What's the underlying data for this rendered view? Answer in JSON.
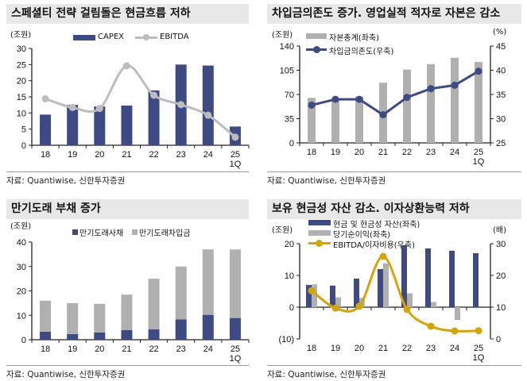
{
  "source_label": "자료: Quantiwise, 신한투자증권",
  "chart_data": [
    {
      "type": "bar+line",
      "title": "스페셜티 전략 걸림돌은 현금흐름 저하",
      "unit_left": "(조원)",
      "categories": [
        "18",
        "19",
        "20",
        "21",
        "22",
        "23",
        "24",
        "25 1Q"
      ],
      "ylim": [
        0,
        30
      ],
      "yticks": [
        "0",
        "5",
        "10",
        "15",
        "20",
        "25",
        "30"
      ],
      "series": [
        {
          "name": "CAPEX",
          "kind": "bar",
          "axis": "left",
          "color": "#3d4a84",
          "values": [
            9.5,
            12.5,
            12.0,
            12.3,
            17.0,
            25.0,
            24.7,
            5.8
          ]
        },
        {
          "name": "EBITDA",
          "kind": "line",
          "axis": "left",
          "smooth": true,
          "color": "#bdbdbd",
          "values": [
            14.4,
            11.7,
            11.4,
            24.6,
            15.5,
            12.6,
            9.3,
            2.5
          ]
        }
      ]
    },
    {
      "type": "bar+line",
      "title": "차입금의존도 증가. 영업실적 적자로 자본은 감소",
      "unit_left": "(조원)",
      "unit_right": "(%)",
      "categories": [
        "18",
        "19",
        "20",
        "21",
        "22",
        "23",
        "24",
        "25 1Q"
      ],
      "ylim": [
        0,
        140
      ],
      "yticks": [
        "0",
        "35",
        "70",
        "105",
        "140"
      ],
      "ylim_right": [
        25,
        45
      ],
      "yticks_right": [
        "25",
        "30",
        "35",
        "40",
        "45"
      ],
      "series": [
        {
          "name": "자본총계(좌축)",
          "kind": "bar",
          "axis": "left",
          "color": "#b0b0b0",
          "values": [
            65,
            64,
            67,
            87,
            106,
            114,
            123,
            117
          ]
        },
        {
          "name": "차입금의존도(우축)",
          "kind": "line",
          "axis": "right",
          "smooth": false,
          "color": "#3d4a84",
          "values": [
            32.8,
            34.0,
            34.0,
            30.8,
            34.4,
            36.2,
            36.9,
            39.8
          ]
        }
      ]
    },
    {
      "type": "stacked-bar",
      "title": "만기도래 부채 증가",
      "unit_left": "(조원)",
      "categories": [
        "18",
        "19",
        "20",
        "21",
        "22",
        "23",
        "24",
        "25 1Q"
      ],
      "ylim": [
        0,
        40
      ],
      "yticks": [
        "0",
        "10",
        "20",
        "30",
        "40"
      ],
      "series": [
        {
          "name": "만기도래사채",
          "kind": "stack",
          "color": "#3d4a84",
          "values": [
            3.3,
            2.3,
            3.0,
            4.0,
            4.3,
            8.3,
            10.2,
            8.9
          ]
        },
        {
          "name": "만기도래차입금",
          "kind": "stack",
          "color": "#b0b0b0",
          "values": [
            12.7,
            12.7,
            11.7,
            14.5,
            20.7,
            21.7,
            26.8,
            28.1
          ]
        }
      ]
    },
    {
      "type": "bar+line",
      "title": "보유 현금성 자산 감소. 이자상환능력 저하",
      "unit_left": "(조원)",
      "unit_right": "(배)",
      "categories": [
        "18",
        "19",
        "20",
        "21",
        "22",
        "23",
        "24",
        "25 1Q"
      ],
      "ylim": [
        -10,
        20
      ],
      "yticks": [
        "(10)",
        "0",
        "10",
        "20"
      ],
      "ylim_right": [
        0,
        30
      ],
      "yticks_right": [
        "0",
        "10",
        "20",
        "30"
      ],
      "series": [
        {
          "name": "현금 및 현금성 자산(좌축)",
          "kind": "bar",
          "axis": "left",
          "color": "#3d4a84",
          "values": [
            7.0,
            6.8,
            9.0,
            12.0,
            19.5,
            18.5,
            17.8,
            17.0
          ]
        },
        {
          "name": "당기순이익(좌축)",
          "kind": "bar",
          "axis": "left",
          "color": "#b0b0b0",
          "values": [
            7.2,
            3.1,
            2.9,
            13.8,
            4.4,
            1.6,
            -4.0,
            null
          ]
        },
        {
          "name": "EBITDA/이자비용(우축)",
          "kind": "line",
          "axis": "right",
          "smooth": true,
          "color": "#d4a50a",
          "values": [
            15.2,
            9.7,
            10.3,
            26.0,
            9.3,
            4.0,
            2.5,
            2.6
          ]
        }
      ]
    }
  ]
}
